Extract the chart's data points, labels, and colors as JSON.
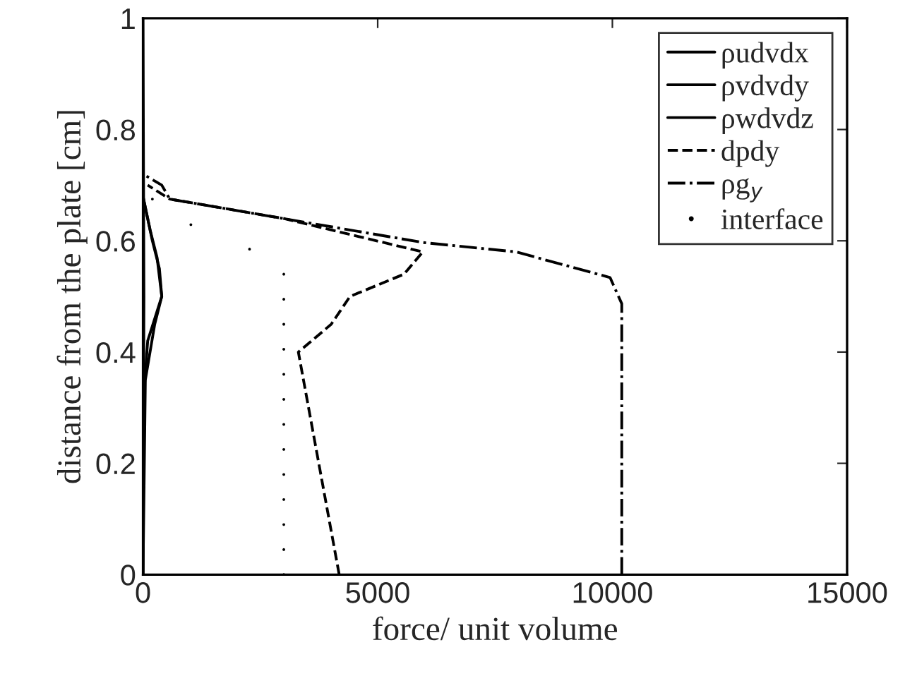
{
  "chart_data": {
    "type": "line",
    "xlabel": "force/ unit volume",
    "ylabel": "distance from the plate [cm]",
    "xlim": [
      0,
      15000
    ],
    "ylim": [
      0,
      1
    ],
    "xticks": [
      0,
      5000,
      10000,
      15000
    ],
    "yticks": [
      0,
      0.2,
      0.4,
      0.6,
      0.8,
      1
    ],
    "grid": false,
    "legend": "top right",
    "series": [
      {
        "name": "ρudvdx",
        "color": "#000000",
        "line_style": "solid",
        "x": [
          0,
          0,
          100,
          400,
          300,
          150,
          0
        ],
        "values": [
          0,
          0.3,
          0.42,
          0.5,
          0.57,
          0.62,
          0.68
        ]
      },
      {
        "name": "ρvdvdy",
        "color": "#000000",
        "line_style": "solid",
        "x": [
          0,
          50,
          250,
          400,
          350,
          200,
          0
        ],
        "values": [
          0,
          0.35,
          0.45,
          0.5,
          0.55,
          0.6,
          0.68
        ]
      },
      {
        "name": "ρwdvdz",
        "color": "#000000",
        "line_style": "solid",
        "x": [
          0,
          20,
          0
        ],
        "values": [
          0,
          0.5,
          1
        ]
      },
      {
        "name": "dpdy",
        "color": "#000000",
        "line_style": "dashed",
        "x": [
          4180,
          3310,
          4010,
          4410,
          5560,
          5960,
          3000,
          570,
          100
        ],
        "values": [
          0,
          0.4,
          0.45,
          0.5,
          0.54,
          0.58,
          0.64,
          0.675,
          0.7
        ]
      },
      {
        "name": "ρg$_{y}$",
        "color": "#000000",
        "line_style": "dashdot",
        "x": [
          10200,
          10200,
          9950,
          7950,
          5960,
          570,
          400,
          0
        ],
        "values": [
          0,
          0.487,
          0.534,
          0.58,
          0.597,
          0.675,
          0.7,
          0.72
        ]
      },
      {
        "name": "interface",
        "type": "scatter",
        "color": "#000000",
        "marker": "circle",
        "x": [
          3000,
          3000,
          3000,
          3000,
          3000,
          3000,
          3000,
          3000,
          3000,
          3000,
          3000,
          3000,
          3000,
          2270,
          1020,
          200
        ],
        "values": [
          0,
          0.045,
          0.09,
          0.135,
          0.18,
          0.225,
          0.27,
          0.315,
          0.36,
          0.405,
          0.45,
          0.495,
          0.54,
          0.585,
          0.629,
          0.675
        ]
      }
    ]
  }
}
